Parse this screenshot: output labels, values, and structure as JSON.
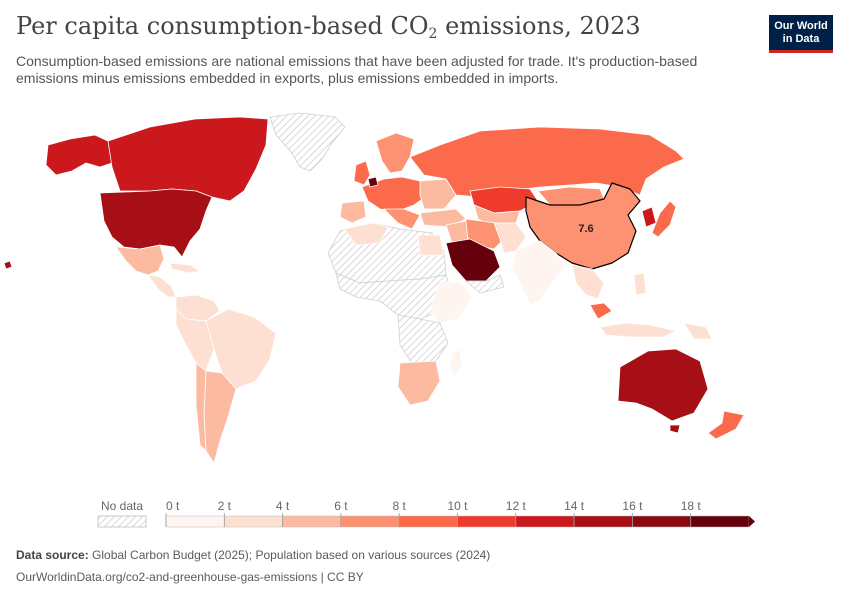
{
  "header": {
    "title_main": "Per capita consumption-based CO",
    "title_sub": "2",
    "title_end": " emissions, 2023",
    "subtitle": "Consumption-based emissions are national emissions that have been adjusted for trade. It's production-based emissions minus emissions embedded in exports, plus emissions embedded in imports."
  },
  "logo": {
    "line1": "Our World",
    "line2": "in Data"
  },
  "map": {
    "highlight_label": "7.6",
    "highlight_country": "China",
    "highlight_value": 7.6,
    "colors": {
      "no_data": "#e6e6e6",
      "border": "#ffffff",
      "highlight_stroke": "#000000"
    }
  },
  "legend": {
    "no_data_label": "No data",
    "ticks": [
      "0 t",
      "2 t",
      "4 t",
      "6 t",
      "8 t",
      "10 t",
      "12 t",
      "14 t",
      "16 t",
      "18 t"
    ],
    "bin_colors": [
      "#fff5f0",
      "#fde0d2",
      "#fcbba1",
      "#fc9272",
      "#fb6a4a",
      "#ef3b2c",
      "#cb181d",
      "#a50f15",
      "#8b0a12",
      "#67000d"
    ]
  },
  "footer": {
    "source_label": "Data source:",
    "source_text": " Global Carbon Budget (2025); Population based on various sources (2024)",
    "url_text": "OurWorldinData.org/co2-and-greenhouse-gas-emissions | CC BY"
  }
}
